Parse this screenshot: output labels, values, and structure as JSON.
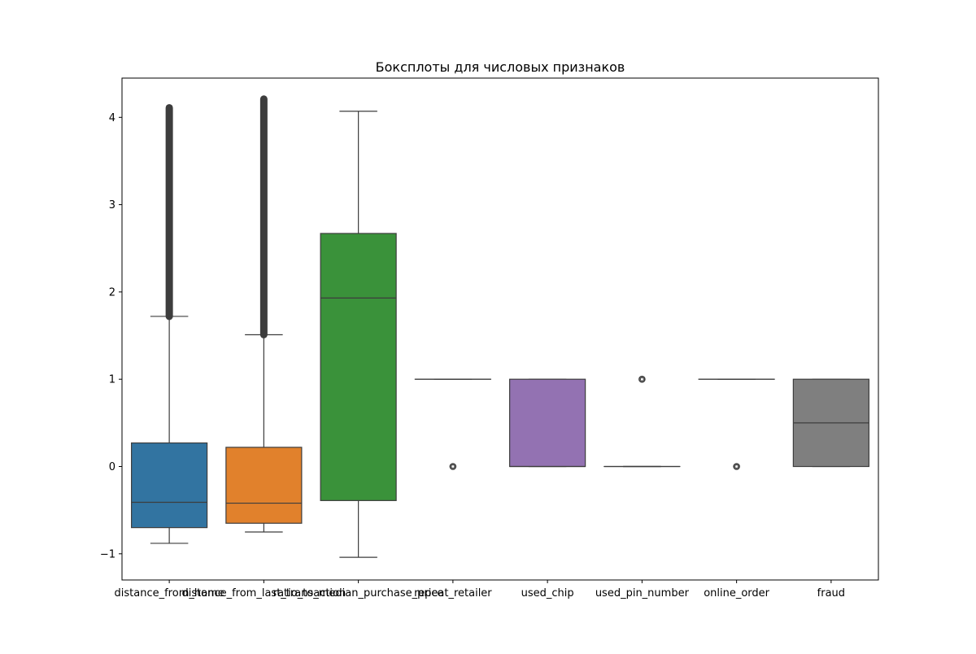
{
  "chart_data": {
    "type": "boxplot",
    "title": "Боксплоты для числовых признаков",
    "xlabel": "",
    "ylabel": "",
    "ylim": [
      -1.3,
      4.45
    ],
    "yticks": [
      -1,
      0,
      1,
      2,
      3,
      4
    ],
    "ytick_labels": [
      "−1",
      "0",
      "1",
      "2",
      "3",
      "4"
    ],
    "grid": false,
    "categories": [
      "distance_from_home",
      "distance_from_last_transaction",
      "ratio_to_median_purchase_price",
      "repeat_retailer",
      "used_chip",
      "used_pin_number",
      "online_order",
      "fraud"
    ],
    "boxes": [
      {
        "name": "distance_from_home",
        "color": "#3274a1",
        "whisker_low": -0.88,
        "q1": -0.7,
        "median": -0.41,
        "q3": 0.27,
        "whisker_high": 1.72,
        "outliers_range": [
          1.72,
          4.11
        ]
      },
      {
        "name": "distance_from_last_transaction",
        "color": "#e1812c",
        "whisker_low": -0.75,
        "q1": -0.65,
        "median": -0.42,
        "q3": 0.22,
        "whisker_high": 1.51,
        "outliers_range": [
          1.51,
          4.21
        ]
      },
      {
        "name": "ratio_to_median_purchase_price",
        "color": "#3a923a",
        "whisker_low": -1.04,
        "q1": -0.39,
        "median": 1.93,
        "q3": 2.67,
        "whisker_high": 4.07,
        "outliers_range": null
      },
      {
        "name": "repeat_retailer",
        "color": "#c03d3e",
        "whisker_low": 1.0,
        "q1": 1.0,
        "median": 1.0,
        "q3": 1.0,
        "whisker_high": 1.0,
        "outliers": [
          0
        ]
      },
      {
        "name": "used_chip",
        "color": "#9372b2",
        "whisker_low": 0.0,
        "q1": 0.0,
        "median": 0.0,
        "q3": 1.0,
        "whisker_high": 1.0,
        "outliers": []
      },
      {
        "name": "used_pin_number",
        "color": "#845b53",
        "whisker_low": 0.0,
        "q1": 0.0,
        "median": 0.0,
        "q3": 0.0,
        "whisker_high": 0.0,
        "outliers": [
          1
        ]
      },
      {
        "name": "online_order",
        "color": "#d684bd",
        "whisker_low": 1.0,
        "q1": 1.0,
        "median": 1.0,
        "q3": 1.0,
        "whisker_high": 1.0,
        "outliers": [
          0
        ]
      },
      {
        "name": "fraud",
        "color": "#7f7f7f",
        "whisker_low": 0.0,
        "q1": 0.0,
        "median": 0.5,
        "q3": 1.0,
        "whisker_high": 1.0,
        "outliers": []
      }
    ]
  }
}
